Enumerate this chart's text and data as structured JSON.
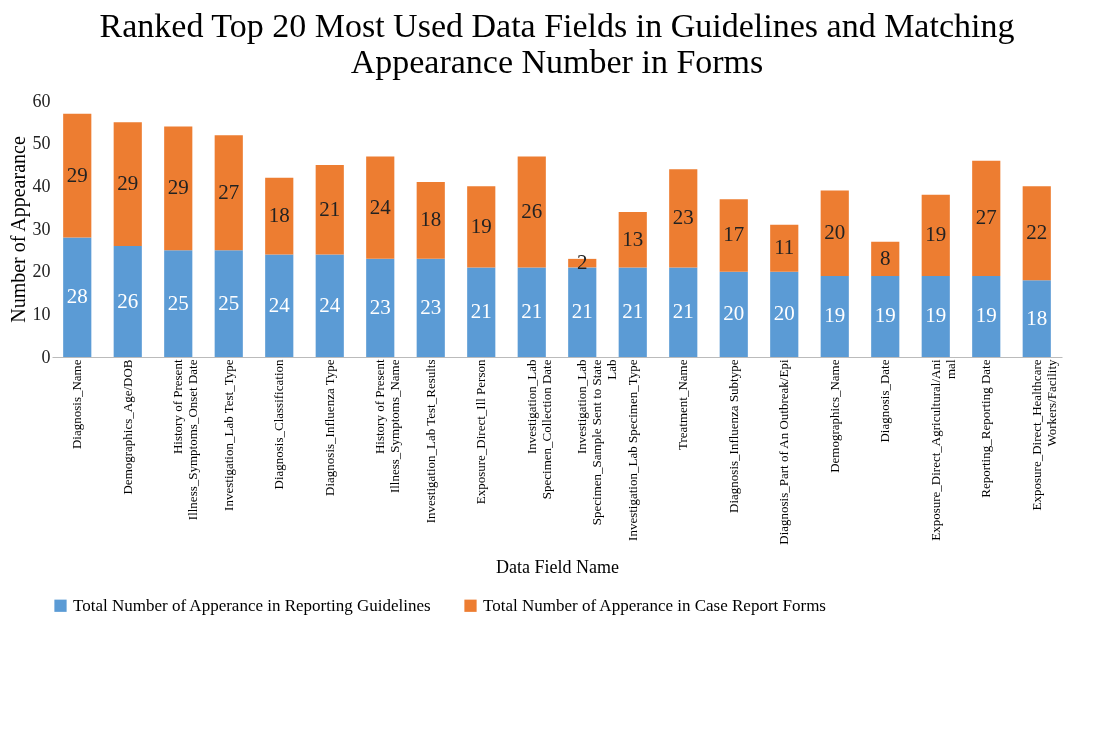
{
  "chart_data": {
    "type": "bar",
    "stacked": true,
    "title": "Ranked Top 20 Most Used Data Fields in Guidelines and Matching Appearance Number in Forms",
    "xlabel": "Data Field Name",
    "ylabel": "Number of Appearance",
    "categories": [
      "Diagnosis_Name",
      "Demographics_Age/DOB",
      "History of Present\nIllness_Symptoms_Onset Date",
      "Investigation_Lab Test_Type",
      "Diagnosis_Classification",
      "Diagnosis_Influenza Type",
      "History of Present\nIllness_Symptoms_Name",
      "Investigation_Lab Test_Results",
      "Exposure_Direct_Ill Person",
      "Investigation_Lab\nSpecimen_Collection Date",
      "Investigation_Lab\nSpecimen_Sample Sent to State\nLab",
      "Investigation_Lab Specimen_Type",
      "Treatment_Name",
      "Diagnosis_Influenza Subtype",
      "Diagnosis_Part of An Outbreak/Epi",
      "Demographics_Name",
      "Diagnosis_Date",
      "Exposure_Direct_Agricultural/Ani\nmal",
      "Reporting_Reporting Date",
      "Exposure_Direct_Healthcare\nWorkers/Facility"
    ],
    "series": [
      {
        "name": "Total Number of Apperance in Reporting Guidelines",
        "color": "#5b9bd5",
        "values": [
          28,
          26,
          25,
          25,
          24,
          24,
          23,
          23,
          21,
          21,
          21,
          21,
          21,
          20,
          20,
          19,
          19,
          19,
          19,
          18
        ]
      },
      {
        "name": "Total Number of Apperance in Case Report Forms",
        "color": "#ed7d31",
        "values": [
          29,
          29,
          29,
          27,
          18,
          21,
          24,
          18,
          19,
          26,
          2,
          13,
          23,
          17,
          11,
          20,
          8,
          19,
          27,
          22
        ]
      }
    ],
    "ylim": [
      0,
      60
    ],
    "yticks": [
      0,
      10,
      20,
      30,
      40,
      50,
      60
    ],
    "data_labels": true,
    "legend": "bottom"
  }
}
